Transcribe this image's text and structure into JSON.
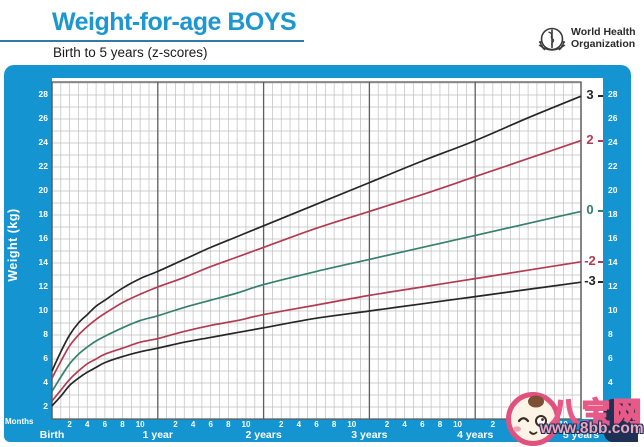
{
  "header": {
    "title": "Weight-for-age BOYS",
    "subtitle": "Birth to 5 years (z-scores)",
    "title_color": "#1d97cf",
    "who_line1": "World Health",
    "who_line2": "Organization"
  },
  "panel": {
    "background_color": "#1495d2"
  },
  "chart_data": {
    "type": "line",
    "title": "Weight-for-age BOYS",
    "subtitle": "Birth to 5 years (z-scores)",
    "ylabel": "Weight (kg)",
    "grid": true,
    "legend_position": "curve-end-labels-right",
    "x_months": [
      0,
      1,
      2,
      3,
      4,
      5,
      6,
      8,
      10,
      12,
      15,
      18,
      21,
      24,
      30,
      36,
      42,
      48,
      54,
      60
    ],
    "series": [
      {
        "name": "3",
        "zscore": "+3",
        "color": "#262626",
        "values": [
          5.0,
          6.6,
          8.0,
          9.0,
          9.7,
          10.4,
          10.9,
          11.9,
          12.7,
          13.3,
          14.3,
          15.3,
          16.2,
          17.1,
          18.9,
          20.7,
          22.5,
          24.2,
          26.1,
          27.9
        ]
      },
      {
        "name": "2",
        "zscore": "+2",
        "color": "#b13c52",
        "values": [
          4.4,
          5.8,
          7.1,
          8.0,
          8.7,
          9.3,
          9.8,
          10.7,
          11.4,
          12.0,
          12.8,
          13.7,
          14.5,
          15.3,
          16.9,
          18.3,
          19.7,
          21.2,
          22.7,
          24.2
        ]
      },
      {
        "name": "0",
        "zscore": "0",
        "color": "#35816b",
        "values": [
          3.3,
          4.5,
          5.6,
          6.4,
          7.0,
          7.5,
          7.9,
          8.6,
          9.2,
          9.6,
          10.3,
          10.9,
          11.5,
          12.2,
          13.3,
          14.3,
          15.3,
          16.3,
          17.3,
          18.3
        ]
      },
      {
        "name": "-2",
        "zscore": "-2",
        "color": "#b13c52",
        "values": [
          2.5,
          3.4,
          4.3,
          5.0,
          5.6,
          6.0,
          6.4,
          6.9,
          7.4,
          7.7,
          8.3,
          8.8,
          9.2,
          9.7,
          10.5,
          11.3,
          12.0,
          12.7,
          13.4,
          14.1
        ]
      },
      {
        "name": "-3",
        "zscore": "-3",
        "color": "#262626",
        "values": [
          2.1,
          2.9,
          3.8,
          4.4,
          4.9,
          5.3,
          5.7,
          6.2,
          6.6,
          6.9,
          7.4,
          7.8,
          8.2,
          8.6,
          9.4,
          10.0,
          10.6,
          11.2,
          11.8,
          12.4
        ]
      }
    ],
    "x_axis": {
      "months_caption": "Months",
      "year_labels": [
        "Birth",
        "1 year",
        "2 years",
        "3 years",
        "4 years",
        "5 years"
      ],
      "month_tick_labels": [
        2,
        4,
        6,
        8,
        10
      ],
      "range_months": [
        0,
        60
      ],
      "minor_grid_step_months": 1,
      "major_grid_step_months": 12
    },
    "y_axis": {
      "tick_labels": [
        2,
        4,
        6,
        8,
        10,
        12,
        14,
        16,
        18,
        20,
        22,
        24,
        26,
        28
      ],
      "range_kg": [
        1,
        29
      ],
      "grid_step_kg": 1
    }
  },
  "watermark": {
    "badge": "baby-face",
    "site_name": "八宝网",
    "site_url": "www.8bb.com",
    "accent_color": "#e75a88"
  }
}
